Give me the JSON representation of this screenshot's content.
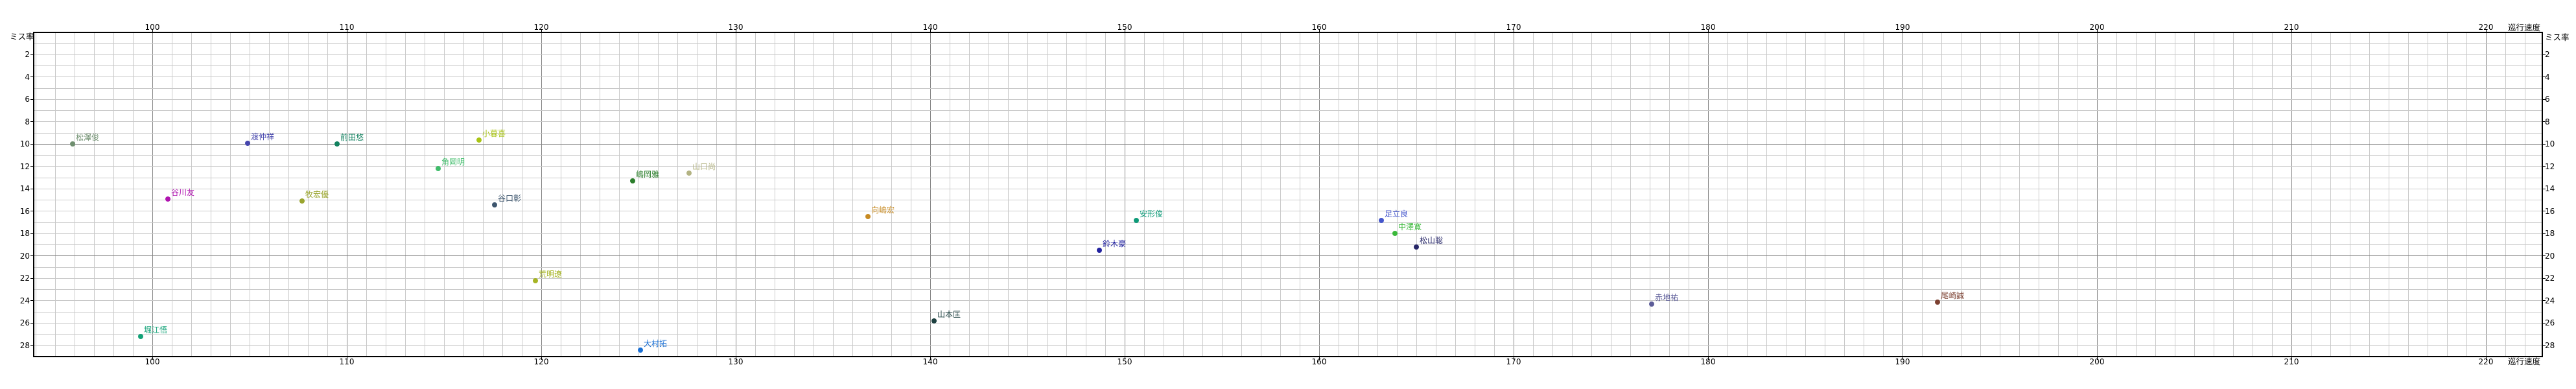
{
  "labels": {
    "x_axis_title": "巡行速度",
    "y_axis_title": "ミス率"
  },
  "colors": {
    "background": "#ffffff",
    "grid_minor": "#c9c9c9",
    "grid_major": "#858585",
    "axis": "#000000"
  },
  "chart_data": {
    "type": "scatter",
    "title": "",
    "xlabel": "巡行速度",
    "ylabel": "ミス率",
    "xlim": [
      93.9,
      222.9
    ],
    "ylim": [
      0,
      29
    ],
    "y_axis_inverted_downward": true,
    "grid": "minor every 1 unit, major every 10 units",
    "legend_position": "none",
    "x_ticks": [
      100,
      110,
      120,
      130,
      140,
      150,
      160,
      170,
      180,
      190,
      200,
      210,
      220
    ],
    "y_ticks": [
      2,
      4,
      6,
      8,
      10,
      12,
      14,
      16,
      18,
      20,
      22,
      24,
      26,
      28
    ],
    "x_tick_sides": [
      "top",
      "bottom"
    ],
    "y_tick_sides": [
      "left",
      "right"
    ],
    "points": [
      {
        "name": "松澤俊",
        "x": 95.9,
        "y": 10.0,
        "color": "#6f8f6f"
      },
      {
        "name": "渡仲祥",
        "x": 104.9,
        "y": 9.9,
        "color": "#4545ad"
      },
      {
        "name": "前田悠",
        "x": 109.5,
        "y": 10.0,
        "color": "#12815f"
      },
      {
        "name": "小暮喜",
        "x": 116.8,
        "y": 9.6,
        "color": "#a9c414"
      },
      {
        "name": "角岡明",
        "x": 114.7,
        "y": 12.2,
        "color": "#3fbc6a"
      },
      {
        "name": "山口尚",
        "x": 127.6,
        "y": 12.6,
        "color": "#b3b383"
      },
      {
        "name": "嶋岡雅",
        "x": 124.7,
        "y": 13.3,
        "color": "#2c7e2c"
      },
      {
        "name": "谷川友",
        "x": 100.8,
        "y": 14.9,
        "color": "#b014b0"
      },
      {
        "name": "牧宏優",
        "x": 107.7,
        "y": 15.1,
        "color": "#9aa52e"
      },
      {
        "name": "谷口彰",
        "x": 117.6,
        "y": 15.4,
        "color": "#3e566e"
      },
      {
        "name": "向嶋宏",
        "x": 136.8,
        "y": 16.5,
        "color": "#c78a22"
      },
      {
        "name": "安形俊",
        "x": 150.6,
        "y": 16.8,
        "color": "#0d9a78"
      },
      {
        "name": "足立良",
        "x": 163.2,
        "y": 16.8,
        "color": "#4456cc"
      },
      {
        "name": "中澤寛",
        "x": 163.9,
        "y": 18.0,
        "color": "#3bb93b"
      },
      {
        "name": "鈴木豪",
        "x": 148.7,
        "y": 19.5,
        "color": "#2222a0"
      },
      {
        "name": "松山聡",
        "x": 165.0,
        "y": 19.2,
        "color": "#272768"
      },
      {
        "name": "荒明遼",
        "x": 119.7,
        "y": 22.2,
        "color": "#a6b424"
      },
      {
        "name": "山本匡",
        "x": 140.2,
        "y": 25.8,
        "color": "#1d4040"
      },
      {
        "name": "赤地祐",
        "x": 177.1,
        "y": 24.3,
        "color": "#5d5d99"
      },
      {
        "name": "尾崎誠",
        "x": 191.8,
        "y": 24.1,
        "color": "#7c4031"
      },
      {
        "name": "堀江悟",
        "x": 99.4,
        "y": 27.2,
        "color": "#12a277"
      },
      {
        "name": "大村拓",
        "x": 125.1,
        "y": 28.4,
        "color": "#1a6fd4"
      }
    ]
  }
}
